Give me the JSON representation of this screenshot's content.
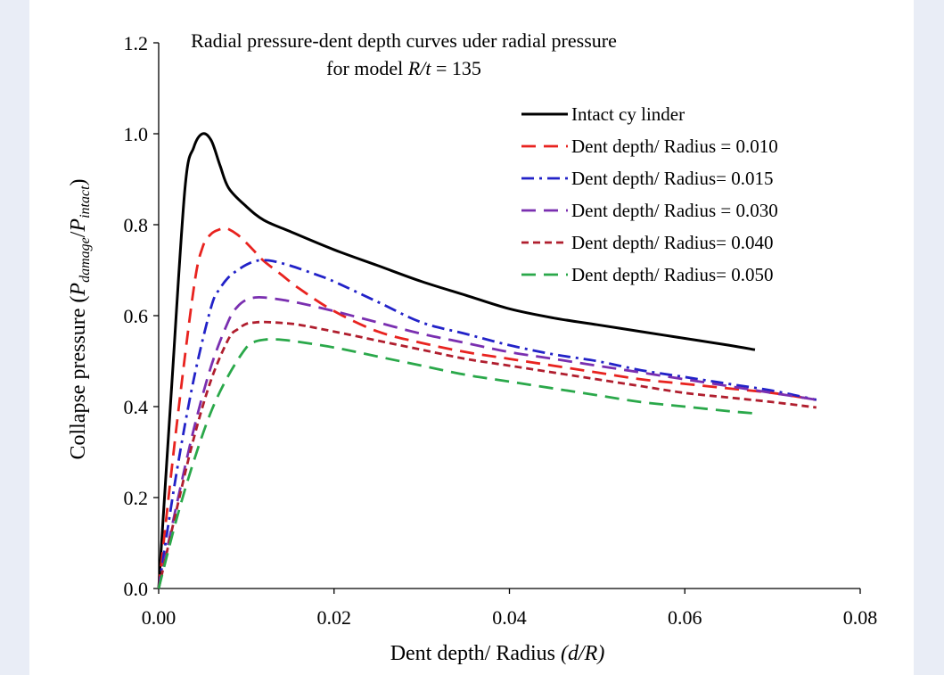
{
  "chart_data": {
    "type": "line",
    "title": "Radial pressure-dent depth curves uder radial pressure",
    "subtitle": {
      "prefix": "for model ",
      "italic": "R/t",
      "suffix": " = 135"
    },
    "xlabel": {
      "text": "Dent depth/ Radius ",
      "italic": "(d/R)"
    },
    "ylabel": {
      "text": "Collapse pressure (",
      "p1": "P",
      "sub1": "damage",
      "slash": "/",
      "p2": "P",
      "sub2": "intact",
      "close": ")"
    },
    "xlim": [
      0,
      0.08
    ],
    "ylim": [
      0,
      1.2
    ],
    "xticks": [
      "0.00",
      "0.02",
      "0.04",
      "0.06",
      "0.08"
    ],
    "yticks": [
      "0.0",
      "0.2",
      "0.4",
      "0.6",
      "0.8",
      "1.0",
      "1.2"
    ],
    "legend_position": "top-right",
    "grid": false,
    "series": [
      {
        "name": "Intact cy linder",
        "color": "#000000",
        "dash": "solid",
        "x": [
          0,
          0.0015,
          0.003,
          0.004,
          0.005,
          0.006,
          0.007,
          0.008,
          0.01,
          0.012,
          0.015,
          0.02,
          0.025,
          0.03,
          0.035,
          0.04,
          0.045,
          0.05,
          0.055,
          0.06,
          0.065,
          0.068
        ],
        "y": [
          0,
          0.45,
          0.88,
          0.97,
          1.0,
          0.985,
          0.93,
          0.88,
          0.84,
          0.81,
          0.785,
          0.745,
          0.71,
          0.675,
          0.645,
          0.615,
          0.595,
          0.58,
          0.565,
          0.55,
          0.535,
          0.525
        ]
      },
      {
        "name": "Dent depth/ Radius = 0.010",
        "color": "#e8231f",
        "dash": "long-dash",
        "x": [
          0,
          0.002,
          0.004,
          0.005,
          0.006,
          0.007,
          0.0075,
          0.008,
          0.009,
          0.01,
          0.011,
          0.012,
          0.014,
          0.016,
          0.02,
          0.025,
          0.03,
          0.035,
          0.04,
          0.045,
          0.05,
          0.055,
          0.06,
          0.065,
          0.07,
          0.075
        ],
        "y": [
          0,
          0.35,
          0.66,
          0.75,
          0.78,
          0.79,
          0.792,
          0.79,
          0.778,
          0.76,
          0.74,
          0.72,
          0.69,
          0.66,
          0.61,
          0.565,
          0.54,
          0.52,
          0.505,
          0.49,
          0.475,
          0.46,
          0.45,
          0.44,
          0.43,
          0.415
        ]
      },
      {
        "name": "Dent depth/ Radius= 0.015",
        "color": "#2222c8",
        "dash": "dash-dot",
        "x": [
          0,
          0.002,
          0.004,
          0.006,
          0.007,
          0.008,
          0.009,
          0.01,
          0.011,
          0.012,
          0.013,
          0.015,
          0.018,
          0.02,
          0.025,
          0.03,
          0.035,
          0.04,
          0.045,
          0.05,
          0.055,
          0.06,
          0.065,
          0.07,
          0.075
        ],
        "y": [
          0,
          0.25,
          0.46,
          0.62,
          0.66,
          0.685,
          0.7,
          0.712,
          0.72,
          0.722,
          0.72,
          0.71,
          0.69,
          0.675,
          0.63,
          0.585,
          0.56,
          0.535,
          0.515,
          0.5,
          0.48,
          0.465,
          0.45,
          0.435,
          0.415
        ]
      },
      {
        "name": "Dent depth/ Radius = 0.030",
        "color": "#7a2fb0",
        "dash": "long-dash",
        "x": [
          0,
          0.002,
          0.004,
          0.006,
          0.008,
          0.009,
          0.01,
          0.011,
          0.012,
          0.014,
          0.016,
          0.02,
          0.025,
          0.03,
          0.035,
          0.04,
          0.045,
          0.05,
          0.055,
          0.06,
          0.065,
          0.07,
          0.075
        ],
        "y": [
          0,
          0.18,
          0.35,
          0.49,
          0.59,
          0.62,
          0.635,
          0.64,
          0.64,
          0.635,
          0.628,
          0.61,
          0.585,
          0.56,
          0.54,
          0.52,
          0.505,
          0.49,
          0.475,
          0.46,
          0.445,
          0.43,
          0.415
        ]
      },
      {
        "name": "Dent depth/ Radius= 0.040",
        "color": "#b01e2e",
        "dash": "short-dash",
        "x": [
          0,
          0.002,
          0.004,
          0.006,
          0.008,
          0.009,
          0.01,
          0.011,
          0.012,
          0.014,
          0.016,
          0.02,
          0.025,
          0.03,
          0.035,
          0.04,
          0.045,
          0.05,
          0.055,
          0.06,
          0.065,
          0.07,
          0.075
        ],
        "y": [
          0,
          0.17,
          0.33,
          0.46,
          0.55,
          0.57,
          0.582,
          0.585,
          0.586,
          0.584,
          0.58,
          0.565,
          0.545,
          0.525,
          0.505,
          0.49,
          0.475,
          0.46,
          0.445,
          0.43,
          0.42,
          0.41,
          0.398
        ]
      },
      {
        "name": "Dent depth/ Radius= 0.050",
        "color": "#2aa84a",
        "dash": "long-dash",
        "x": [
          0,
          0.002,
          0.004,
          0.006,
          0.008,
          0.01,
          0.011,
          0.012,
          0.013,
          0.015,
          0.02,
          0.025,
          0.03,
          0.035,
          0.04,
          0.045,
          0.05,
          0.055,
          0.06,
          0.065,
          0.068
        ],
        "y": [
          0,
          0.15,
          0.28,
          0.39,
          0.47,
          0.53,
          0.543,
          0.547,
          0.548,
          0.545,
          0.53,
          0.51,
          0.49,
          0.47,
          0.455,
          0.44,
          0.425,
          0.41,
          0.4,
          0.39,
          0.385
        ]
      }
    ]
  }
}
